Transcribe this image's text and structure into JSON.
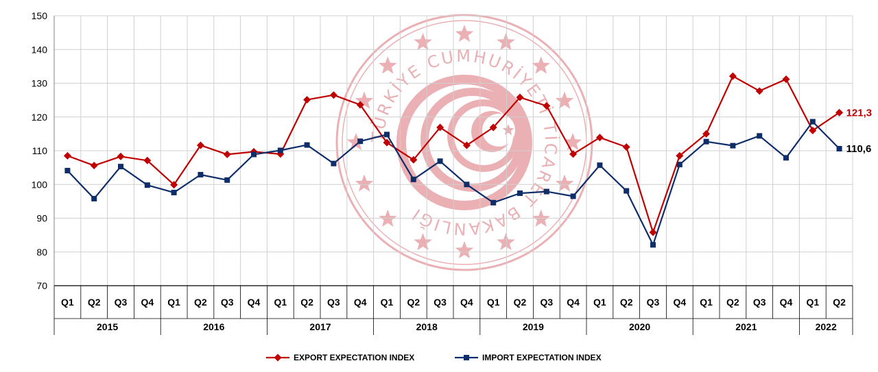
{
  "chart_data": {
    "type": "line",
    "ylim": [
      70,
      150
    ],
    "yticks": [
      70,
      80,
      90,
      100,
      110,
      120,
      130,
      140,
      150
    ],
    "grid": true,
    "legend_position": "bottom",
    "quarters": [
      "Q1",
      "Q2",
      "Q3",
      "Q4",
      "Q1",
      "Q2",
      "Q3",
      "Q4",
      "Q1",
      "Q2",
      "Q3",
      "Q4",
      "Q1",
      "Q2",
      "Q3",
      "Q4",
      "Q1",
      "Q2",
      "Q3",
      "Q4",
      "Q1",
      "Q2",
      "Q3",
      "Q4",
      "Q1",
      "Q2",
      "Q3",
      "Q4",
      "Q1",
      "Q2"
    ],
    "years": [
      {
        "label": "2015",
        "count": 4
      },
      {
        "label": "2016",
        "count": 4
      },
      {
        "label": "2017",
        "count": 4
      },
      {
        "label": "2018",
        "count": 4
      },
      {
        "label": "2019",
        "count": 4
      },
      {
        "label": "2020",
        "count": 4
      },
      {
        "label": "2021",
        "count": 4
      },
      {
        "label": "2022",
        "count": 2
      }
    ],
    "series": [
      {
        "name": "EXPORT EXPECTATION INDEX",
        "color": "#c00000",
        "marker": "diamond",
        "values": [
          108.5,
          105.6,
          108.3,
          107.1,
          99.9,
          111.6,
          108.9,
          109.7,
          109.0,
          125.1,
          126.5,
          123.6,
          112.4,
          107.3,
          116.9,
          111.6,
          116.9,
          125.8,
          123.3,
          109.0,
          113.9,
          111.1,
          85.8,
          108.5,
          115.0,
          132.1,
          127.7,
          131.2,
          116.0,
          121.3
        ],
        "end_label": "121,3"
      },
      {
        "name": "IMPORT EXPECTATION INDEX",
        "color": "#0f2d69",
        "marker": "square",
        "values": [
          104.1,
          95.8,
          105.3,
          99.8,
          97.6,
          102.9,
          101.3,
          108.9,
          110.1,
          111.7,
          106.2,
          112.8,
          114.8,
          101.5,
          106.9,
          100.0,
          94.6,
          97.4,
          97.9,
          96.5,
          105.7,
          98.1,
          82.1,
          105.9,
          112.7,
          111.5,
          114.4,
          107.9,
          118.6,
          110.6
        ],
        "end_label": "110,6"
      }
    ]
  },
  "watermark": {
    "text": "TÜRKİYE CUMHURİYETİ TİCARET BAKANLIĞI",
    "color": "#e8a3a8"
  }
}
